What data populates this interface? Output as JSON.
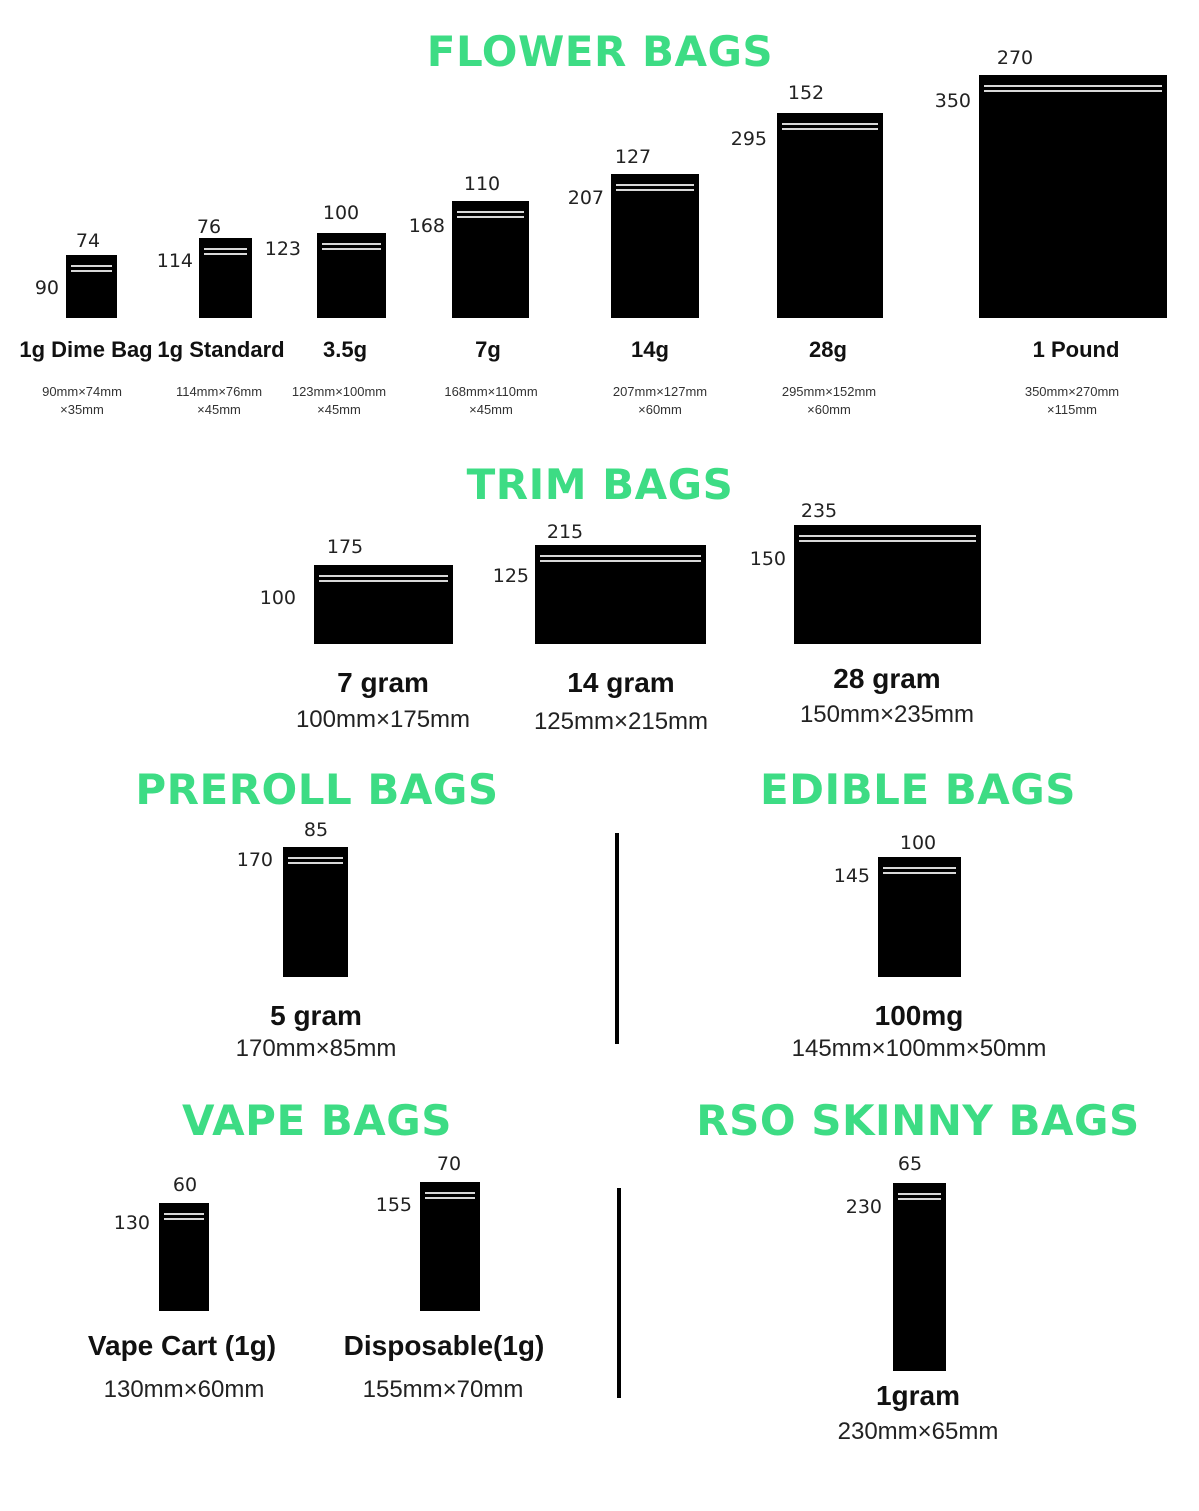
{
  "accent_color": "#3ddc84",
  "flower": {
    "title": "FLOWER BAGS",
    "bags": [
      {
        "width": "74",
        "height": "90",
        "label": "1g Dime Bag",
        "spec1": "90mm×74mm",
        "spec2": "×35mm"
      },
      {
        "width": "76",
        "height": "114",
        "label": "1g Standard",
        "spec1": "114mm×76mm",
        "spec2": "×45mm"
      },
      {
        "width": "100",
        "height": "123",
        "label": "3.5g",
        "spec1": "123mm×100mm",
        "spec2": "×45mm"
      },
      {
        "width": "110",
        "height": "168",
        "label": "7g",
        "spec1": "168mm×110mm",
        "spec2": "×45mm"
      },
      {
        "width": "127",
        "height": "207",
        "label": "14g",
        "spec1": "207mm×127mm",
        "spec2": "×60mm"
      },
      {
        "width": "152",
        "height": "295",
        "label": "28g",
        "spec1": "295mm×152mm",
        "spec2": "×60mm"
      },
      {
        "width": "270",
        "height": "350",
        "label": "1 Pound",
        "spec1": "350mm×270mm",
        "spec2": "×115mm"
      }
    ]
  },
  "trim": {
    "title": "TRIM BAGS",
    "bags": [
      {
        "width": "175",
        "height": "100",
        "label": "7 gram",
        "spec": "100mm×175mm"
      },
      {
        "width": "215",
        "height": "125",
        "label": "14 gram",
        "spec": "125mm×215mm"
      },
      {
        "width": "235",
        "height": "150",
        "label": "28 gram",
        "spec": "150mm×235mm"
      }
    ]
  },
  "preroll": {
    "title": "PREROLL BAGS",
    "bags": [
      {
        "width": "85",
        "height": "170",
        "label": "5 gram",
        "spec": "170mm×85mm"
      }
    ]
  },
  "edible": {
    "title": "EDIBLE BAGS",
    "bags": [
      {
        "width": "100",
        "height": "145",
        "label": "100mg",
        "spec": "145mm×100mm×50mm"
      }
    ]
  },
  "vape": {
    "title": "VAPE BAGS",
    "bags": [
      {
        "width": "60",
        "height": "130",
        "label": "Vape Cart (1g)",
        "spec": "130mm×60mm"
      },
      {
        "width": "70",
        "height": "155",
        "label": "Disposable(1g)",
        "spec": "155mm×70mm"
      }
    ]
  },
  "rso": {
    "title": "RSO SKINNY BAGS",
    "bags": [
      {
        "width": "65",
        "height": "230",
        "label": "1gram",
        "spec": "230mm×65mm"
      }
    ]
  }
}
